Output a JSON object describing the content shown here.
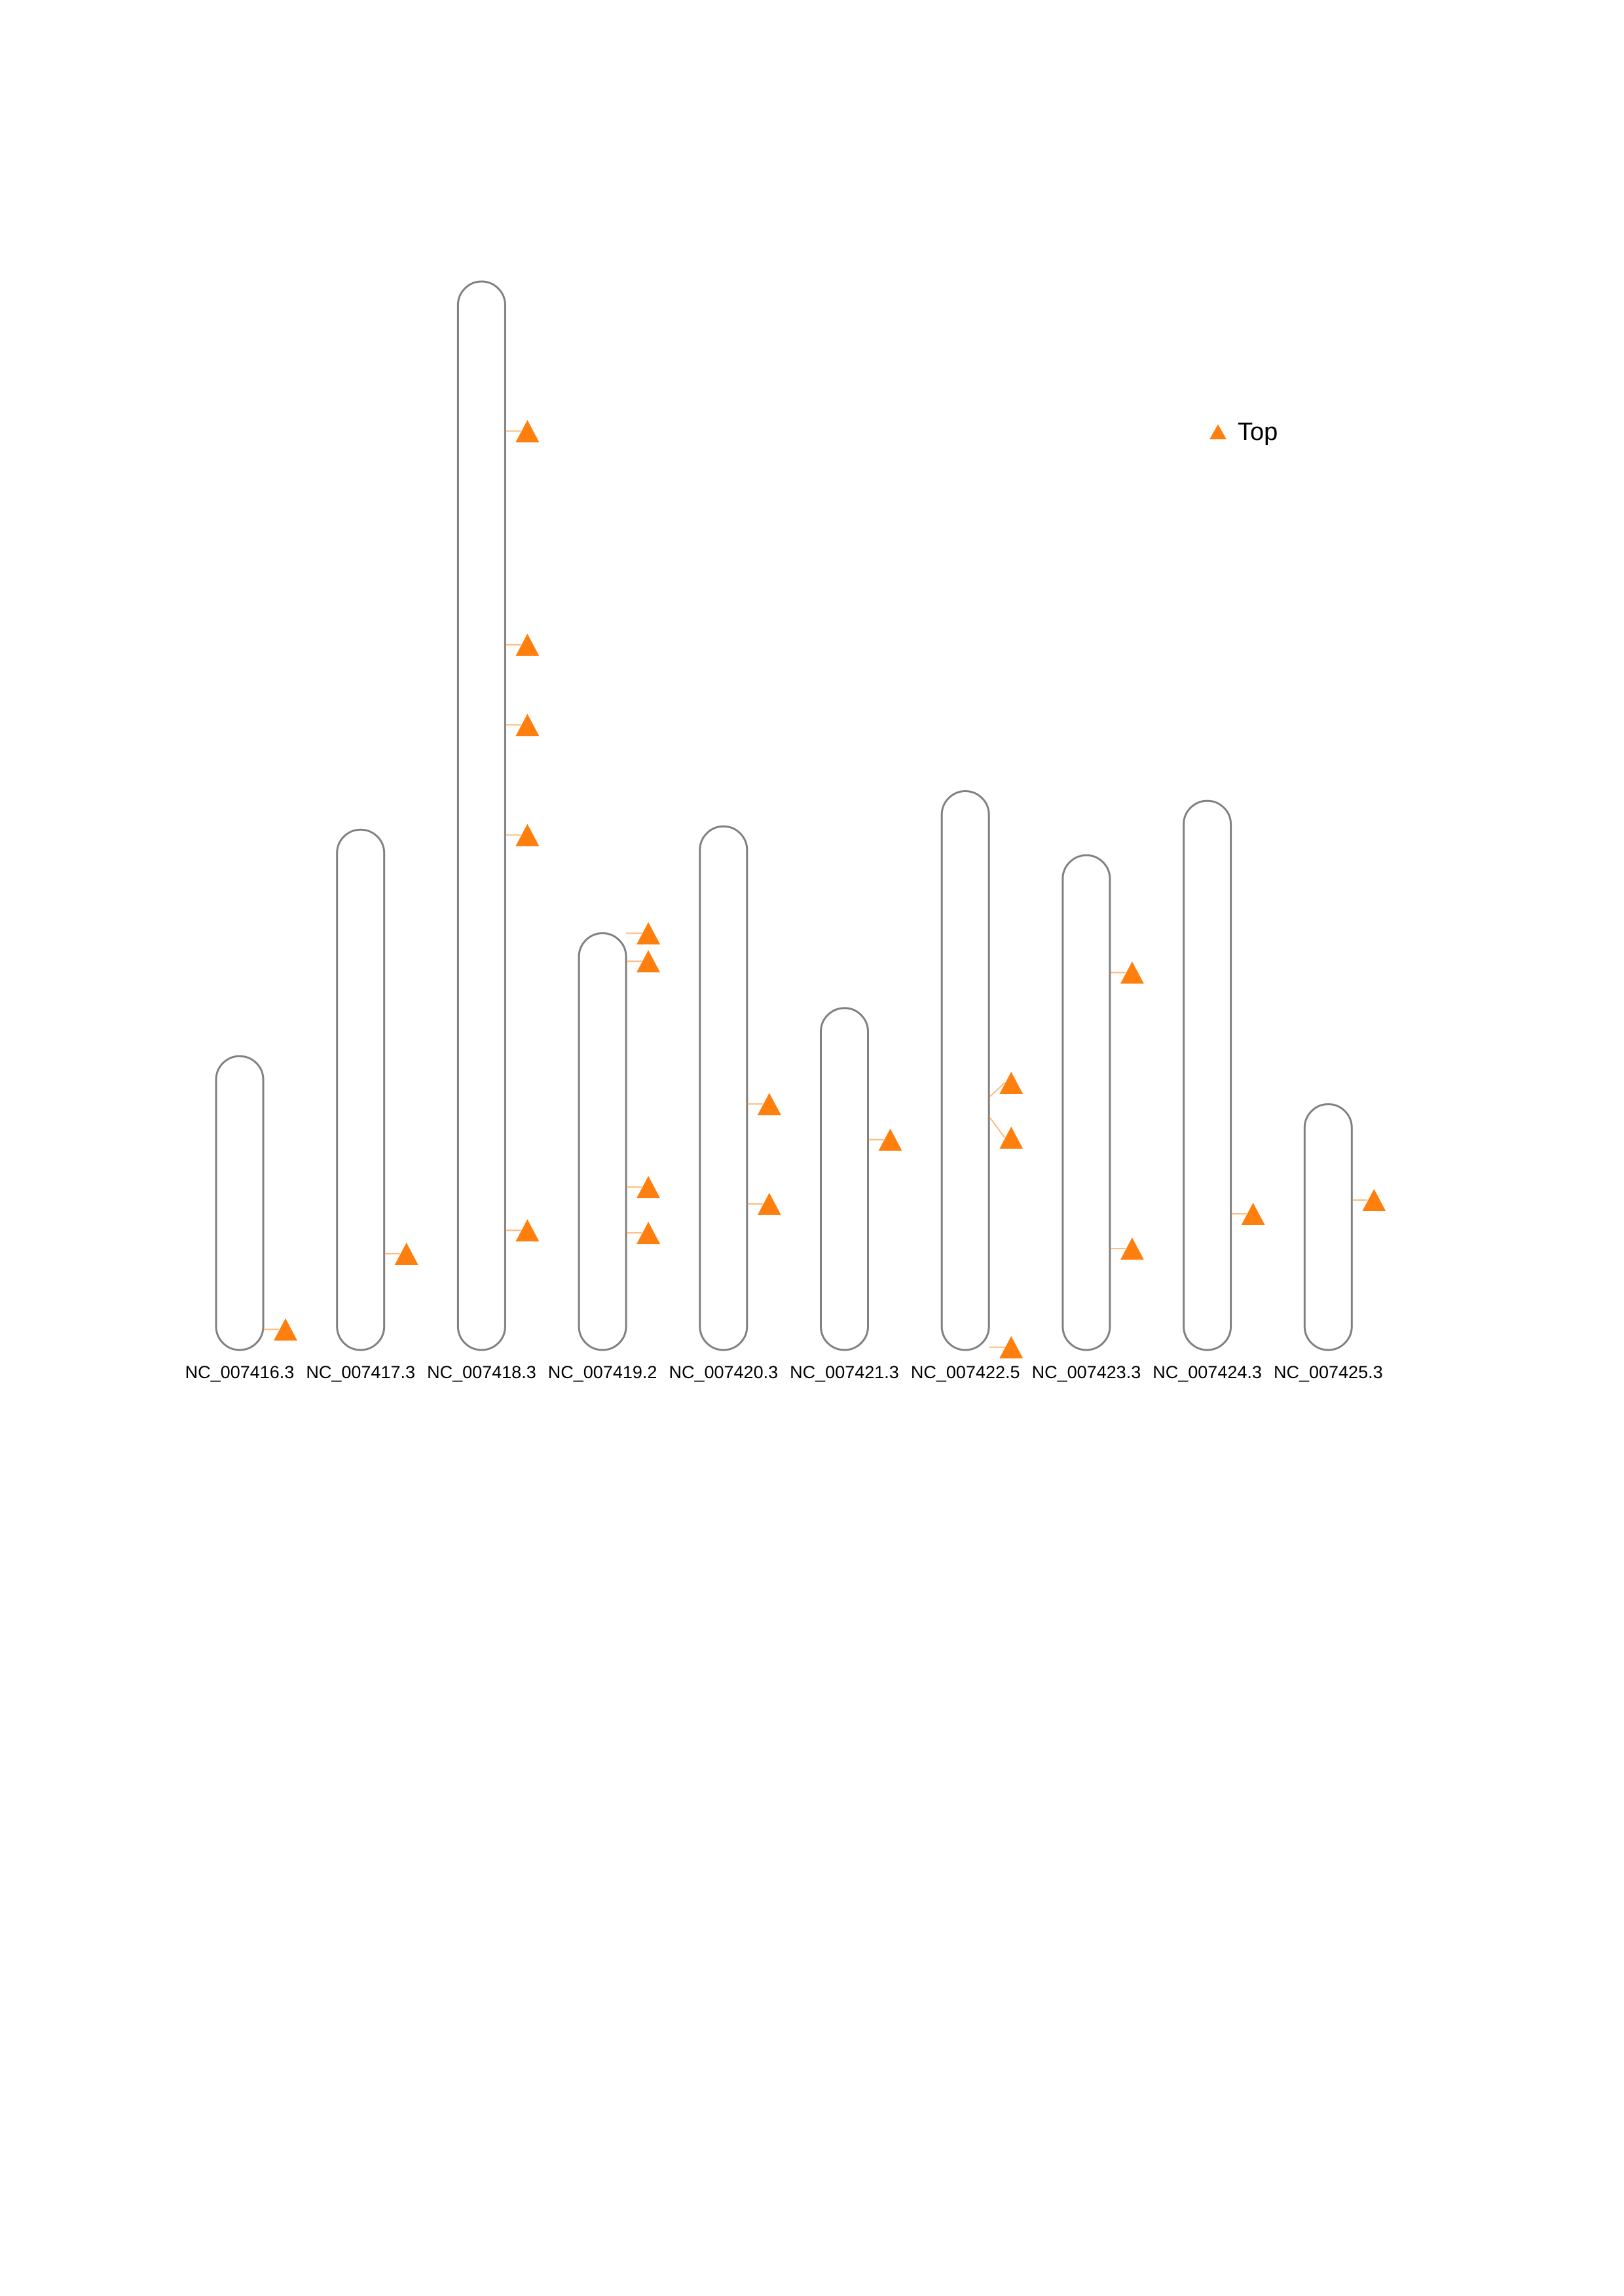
{
  "colors": {
    "marker": "#ff7f0e",
    "outline": "#808080",
    "background": "#ffffff"
  },
  "legend": {
    "label": "Top",
    "icon": "orange-triangle-icon",
    "position": "top-right"
  },
  "chromosomes": [
    {
      "name": "NC_007416.3",
      "length": 0.275,
      "markers": [
        {
          "pos": 0.93,
          "tri": 0.93
        }
      ]
    },
    {
      "name": "NC_007417.3",
      "length": 0.487,
      "markers": [
        {
          "pos": 0.815,
          "tri": 0.815
        }
      ]
    },
    {
      "name": "NC_007418.3",
      "length": 1.0,
      "markers": [
        {
          "pos": 0.14,
          "tri": 0.14
        },
        {
          "pos": 0.34,
          "tri": 0.34
        },
        {
          "pos": 0.415,
          "tri": 0.415
        },
        {
          "pos": 0.518,
          "tri": 0.518
        },
        {
          "pos": 0.888,
          "tri": 0.888
        }
      ]
    },
    {
      "name": "NC_007419.2",
      "length": 0.39,
      "markers": [
        {
          "pos": 0.0,
          "tri": 0.0
        },
        {
          "pos": 0.067,
          "tri": 0.067
        },
        {
          "pos": 0.609,
          "tri": 0.609
        },
        {
          "pos": 0.719,
          "tri": 0.719
        }
      ]
    },
    {
      "name": "NC_007420.3",
      "length": 0.49,
      "markers": [
        {
          "pos": 0.53,
          "tri": 0.53
        },
        {
          "pos": 0.721,
          "tri": 0.721
        }
      ]
    },
    {
      "name": "NC_007421.3",
      "length": 0.32,
      "markers": [
        {
          "pos": 0.385,
          "tri": 0.385
        }
      ]
    },
    {
      "name": "NC_007422.5",
      "length": 0.523,
      "markers": [
        {
          "pos": 0.548,
          "tri": 0.522
        },
        {
          "pos": 0.582,
          "tri": 0.62
        },
        {
          "pos": 0.995,
          "tri": 0.995
        }
      ]
    },
    {
      "name": "NC_007423.3",
      "length": 0.463,
      "markers": [
        {
          "pos": 0.237,
          "tri": 0.237
        },
        {
          "pos": 0.795,
          "tri": 0.795
        }
      ]
    },
    {
      "name": "NC_007424.3",
      "length": 0.514,
      "markers": [
        {
          "pos": 0.752,
          "tri": 0.752
        }
      ]
    },
    {
      "name": "NC_007425.3",
      "length": 0.23,
      "markers": [
        {
          "pos": 0.39,
          "tri": 0.39
        }
      ]
    }
  ]
}
